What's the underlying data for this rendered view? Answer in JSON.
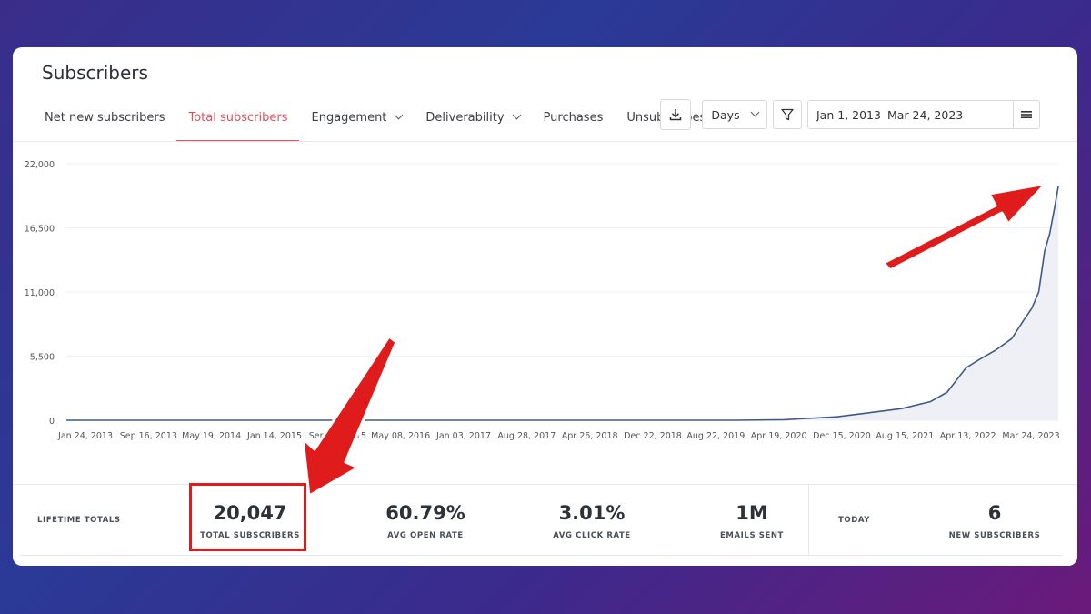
{
  "header": {
    "title": "Subscribers"
  },
  "tabs": [
    {
      "label": "Net new subscribers",
      "active": false,
      "dropdown": false
    },
    {
      "label": "Total subscribers",
      "active": true,
      "dropdown": false
    },
    {
      "label": "Engagement",
      "active": false,
      "dropdown": true
    },
    {
      "label": "Deliverability",
      "active": false,
      "dropdown": true
    },
    {
      "label": "Purchases",
      "active": false,
      "dropdown": false
    },
    {
      "label": "Unsubscribes",
      "active": false,
      "dropdown": false
    }
  ],
  "toolbar": {
    "download_icon": "download-icon",
    "interval_value": "Days",
    "filter_icon": "filter-icon",
    "date_start": "Jan 1, 2013",
    "date_sep": "–",
    "date_end": "Mar 24, 2023",
    "menu_icon": "hamburger-icon"
  },
  "chart_data": {
    "type": "area",
    "x_tick_labels": [
      "Jan 24, 2013",
      "Sep 16, 2013",
      "May 19, 2014",
      "Jan 14, 2015",
      "Sep 09, 2015",
      "May 08, 2016",
      "Jan 03, 2017",
      "Aug 28, 2017",
      "Apr 26, 2018",
      "Dec 22, 2018",
      "Aug 22, 2019",
      "Apr 19, 2020",
      "Dec 15, 2020",
      "Aug 15, 2021",
      "Apr 13, 2022",
      "Mar 24, 2023"
    ],
    "y_tick_labels": [
      "0",
      "5,500",
      "11,000",
      "16,500",
      "22,000"
    ],
    "y_ticks": [
      0,
      5500,
      11000,
      16500,
      22000
    ],
    "ylim": [
      0,
      22000
    ],
    "grid": true,
    "line_color": "#3f5a8a",
    "fill_color": "#eef0f6",
    "series": [
      {
        "x": [
          "2013-01-24",
          "2019-12-01",
          "2020-06-01",
          "2020-12-15",
          "2021-04-01",
          "2021-08-15",
          "2021-12-01",
          "2022-02-01",
          "2022-04-13",
          "2022-06-01",
          "2022-08-01",
          "2022-10-01",
          "2022-11-15",
          "2022-12-15",
          "2023-01-10",
          "2023-02-01",
          "2023-02-20",
          "2023-03-10",
          "2023-03-24"
        ],
        "y": [
          0,
          0,
          50,
          300,
          600,
          1000,
          1600,
          2400,
          4500,
          5200,
          6000,
          7000,
          8600,
          9600,
          11000,
          14500,
          16000,
          18200,
          20047
        ]
      }
    ]
  },
  "totals": {
    "lifetime_label": "LIFETIME TOTALS",
    "stats": [
      {
        "value": "20,047",
        "label": "TOTAL SUBSCRIBERS"
      },
      {
        "value": "60.79%",
        "label": "AVG OPEN RATE"
      },
      {
        "value": "3.01%",
        "label": "AVG CLICK RATE"
      },
      {
        "value": "1M",
        "label": "EMAILS SENT"
      }
    ],
    "today_label": "TODAY",
    "today_stat": {
      "value": "6",
      "label": "NEW SUBSCRIBERS"
    }
  },
  "colors": {
    "accent": "#e0505c",
    "annotation_red": "#e01b1b"
  }
}
